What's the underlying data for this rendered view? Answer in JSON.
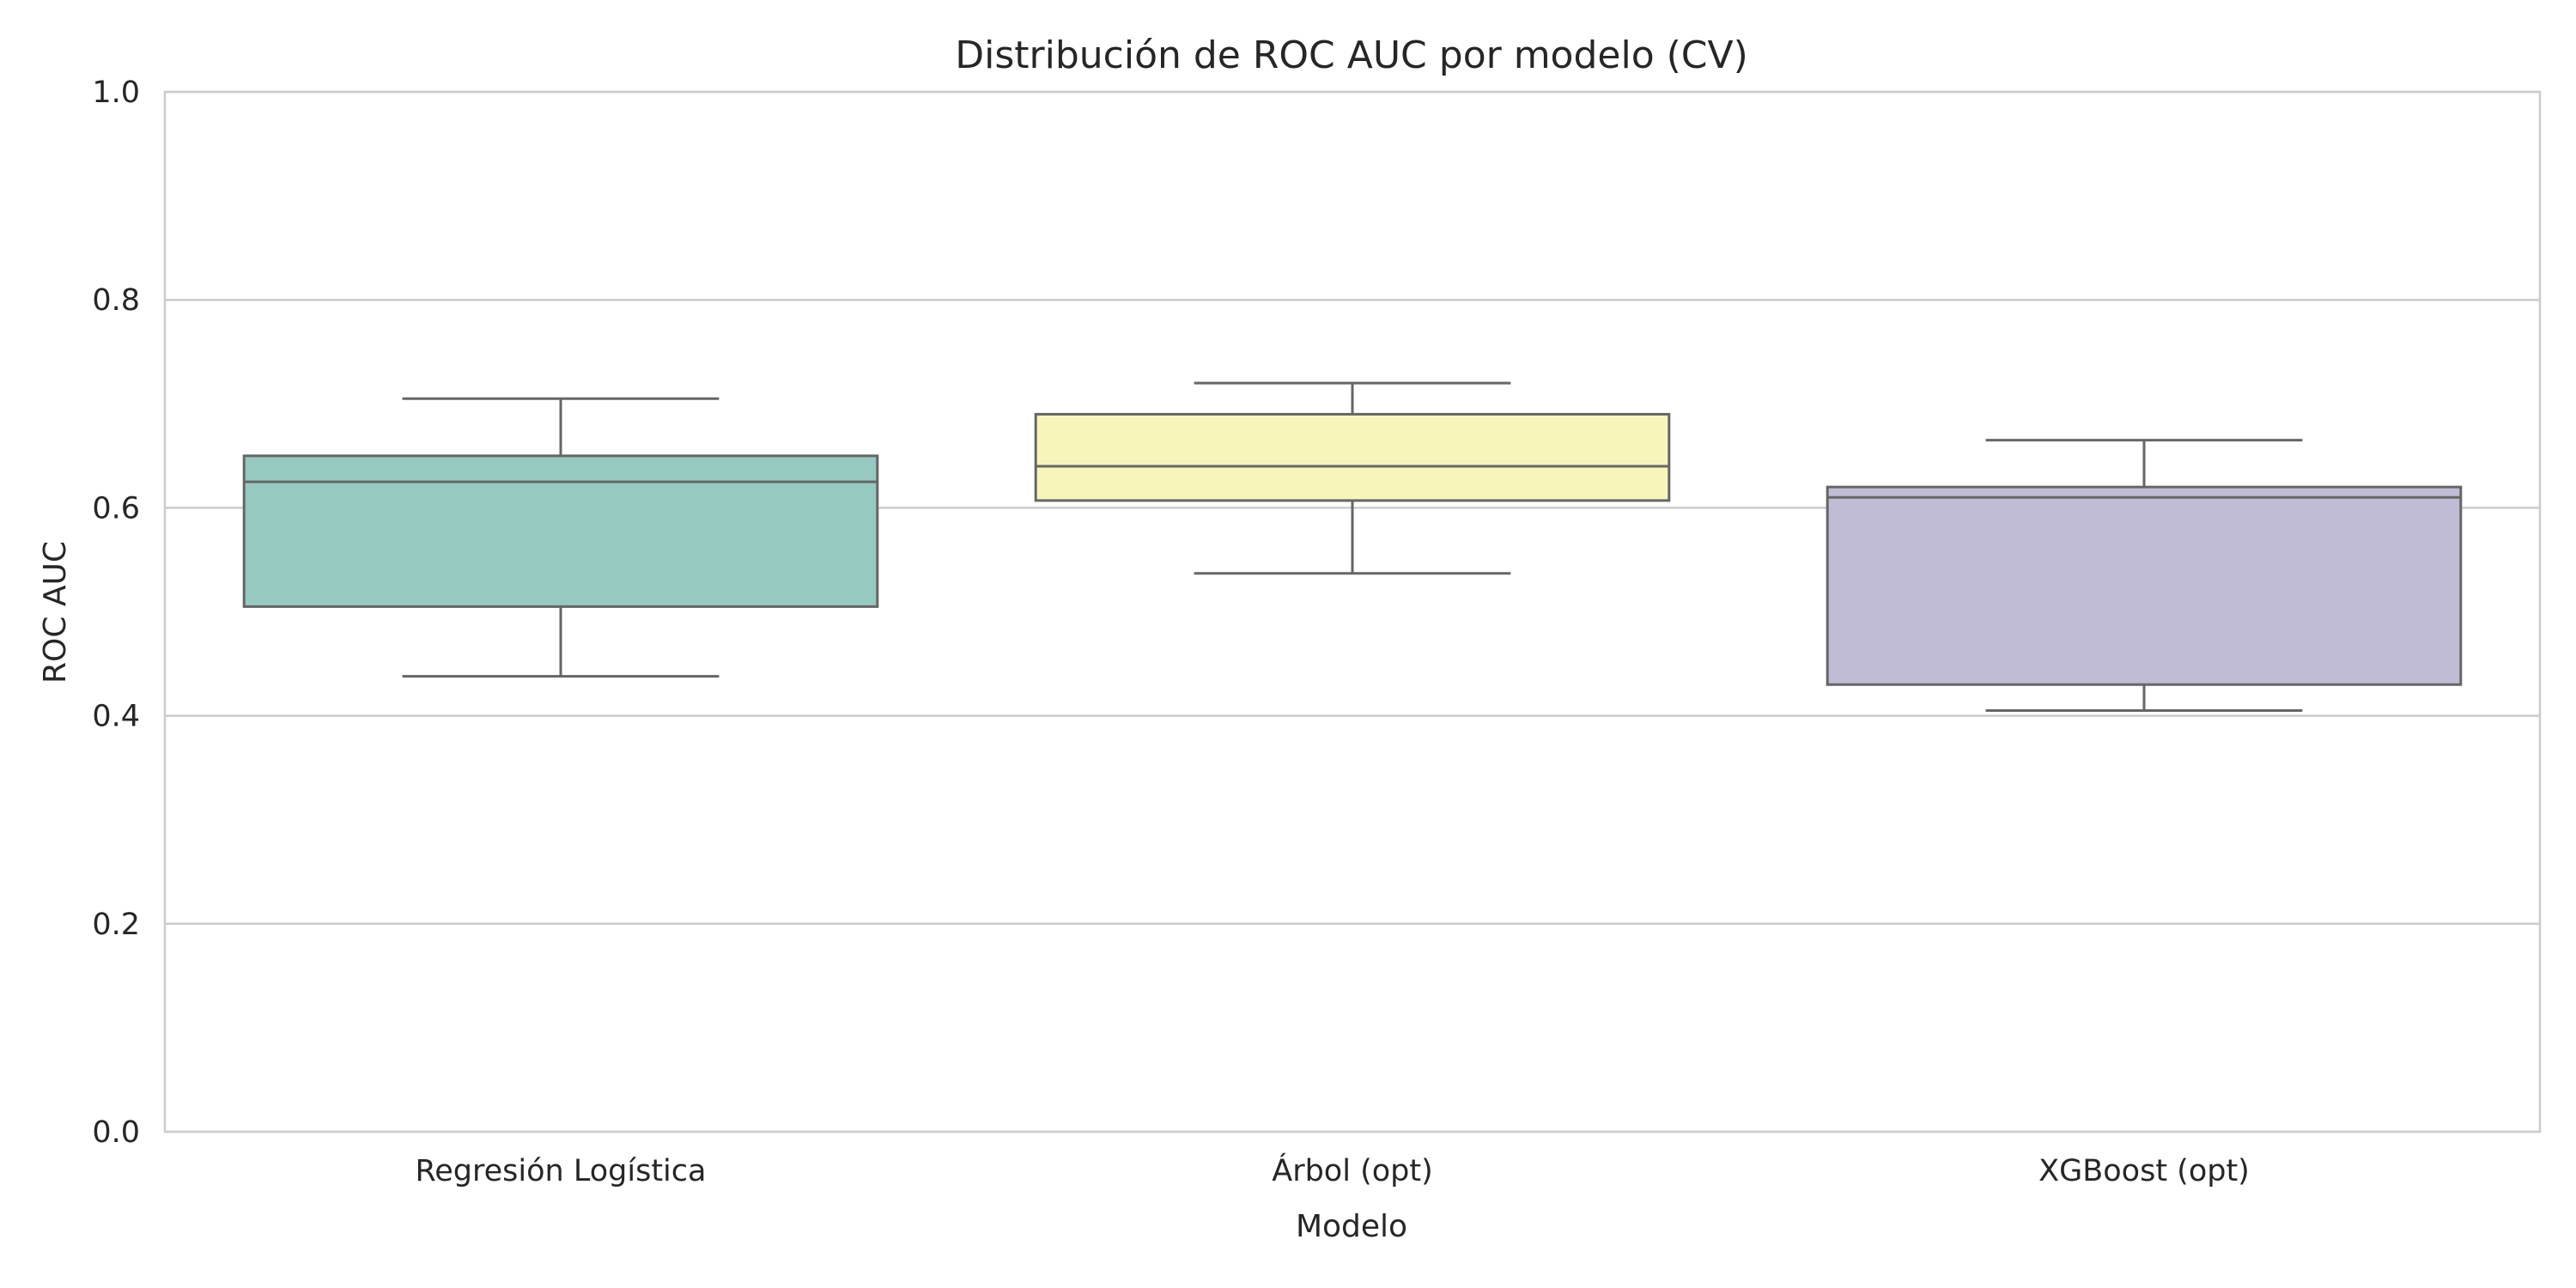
{
  "chart_data": {
    "type": "box",
    "title": "Distribución de ROC AUC por modelo (CV)",
    "xlabel": "Modelo",
    "ylabel": "ROC AUC",
    "ylim": [
      0.0,
      1.0
    ],
    "yticks": [
      "0.0",
      "0.2",
      "0.4",
      "0.6",
      "0.8",
      "1.0"
    ],
    "grid": true,
    "categories": [
      "Regresión Logística",
      "Árbol (opt)",
      "XGBoost (opt)"
    ],
    "boxes": [
      {
        "category": "Regresión Logística",
        "whisker_low": 0.438,
        "q1": 0.505,
        "median": 0.625,
        "q3": 0.65,
        "whisker_high": 0.705,
        "color": "#96c9c0"
      },
      {
        "category": "Árbol (opt)",
        "whisker_low": 0.537,
        "q1": 0.607,
        "median": 0.64,
        "q3": 0.69,
        "whisker_high": 0.72,
        "color": "#f6f6bb"
      },
      {
        "category": "XGBoost (opt)",
        "whisker_low": 0.405,
        "q1": 0.43,
        "median": 0.61,
        "q3": 0.62,
        "whisker_high": 0.665,
        "color": "#c1bcd5"
      }
    ],
    "line_color": "#666666",
    "grid_color": "#cccccc"
  }
}
